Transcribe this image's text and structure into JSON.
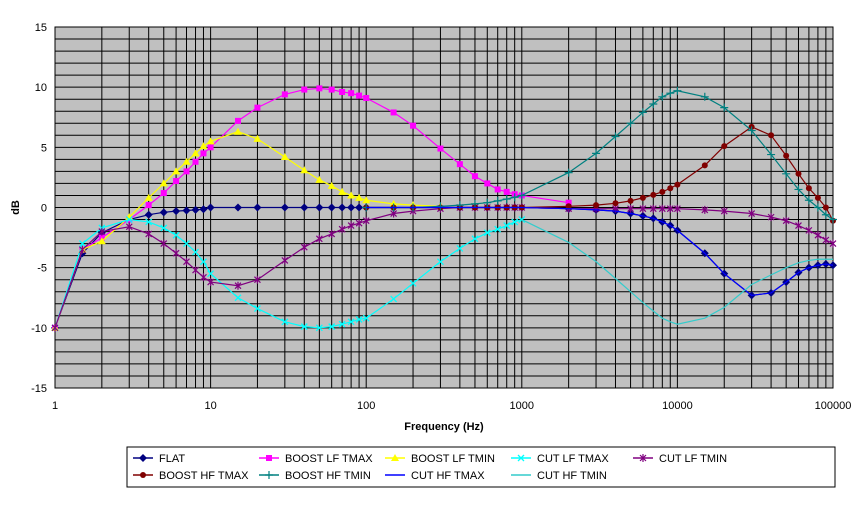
{
  "chart_data": {
    "type": "line",
    "xscale": "log",
    "xlabel": "Frequency (Hz)",
    "ylabel": "dB",
    "xlim": [
      1,
      100000
    ],
    "ylim": [
      -15,
      15
    ],
    "x_ticks": [
      "1",
      "10",
      "100",
      "1000",
      "10000",
      "100000"
    ],
    "y_ticks": [
      "15",
      "10",
      "5",
      "0",
      "-5",
      "-10",
      "-15"
    ],
    "grid": true,
    "plot_background": "#c0c0c0",
    "legend_position": "bottom",
    "series": [
      {
        "name": "FLAT",
        "color": "#000080",
        "marker": "diamond",
        "x": [
          1,
          1.5,
          2,
          3,
          4,
          5,
          6,
          7,
          8,
          9,
          10,
          15,
          20,
          30,
          40,
          50,
          60,
          70,
          80,
          90,
          100,
          150,
          200,
          300,
          400,
          500,
          600,
          700,
          800,
          900,
          1000,
          2000,
          3000,
          4000,
          5000,
          6000,
          7000,
          8000,
          9000,
          10000,
          15000,
          20000,
          30000,
          40000,
          50000,
          60000,
          70000,
          80000,
          90000,
          100000
        ],
        "y": [
          -10,
          -3.8,
          -2.1,
          -1,
          -0.6,
          -0.4,
          -0.3,
          -0.25,
          -0.2,
          -0.15,
          0,
          0,
          0,
          0,
          0,
          0,
          0,
          0,
          0,
          0,
          0,
          0,
          0,
          0,
          0,
          0,
          0,
          0,
          0,
          0,
          0,
          -0.1,
          -0.2,
          -0.3,
          -0.5,
          -0.7,
          -0.9,
          -1.2,
          -1.5,
          -1.9,
          -3.8,
          -5.5,
          -7.3,
          -7.1,
          -6.2,
          -5.4,
          -5,
          -4.8,
          -4.7,
          -4.8
        ]
      },
      {
        "name": "BOOST LF TMAX",
        "color": "#ff00ff",
        "marker": "square",
        "x": [
          1,
          1.5,
          2,
          3,
          4,
          5,
          6,
          7,
          8,
          9,
          10,
          15,
          20,
          30,
          40,
          50,
          60,
          70,
          80,
          90,
          100,
          150,
          200,
          300,
          400,
          500,
          600,
          700,
          800,
          900,
          1000,
          2000
        ],
        "y": [
          -10,
          -3.5,
          -2.5,
          -1,
          0.2,
          1.2,
          2.2,
          3,
          3.8,
          4.5,
          5,
          7.2,
          8.3,
          9.4,
          9.8,
          9.9,
          9.8,
          9.6,
          9.5,
          9.3,
          9.1,
          7.9,
          6.8,
          4.9,
          3.6,
          2.6,
          2,
          1.5,
          1.3,
          1.1,
          1,
          0.4
        ]
      },
      {
        "name": "BOOST LF TMIN",
        "color": "#ffff00",
        "marker": "triangle",
        "x": [
          1,
          1.5,
          2,
          3,
          4,
          5,
          6,
          7,
          8,
          9,
          10,
          15,
          20,
          30,
          40,
          50,
          60,
          70,
          80,
          90,
          100,
          150,
          200,
          300
        ],
        "y": [
          -10,
          -3.5,
          -2.8,
          -0.8,
          0.8,
          2,
          3,
          3.8,
          4.5,
          5.1,
          5.5,
          6.3,
          5.7,
          4.2,
          3.1,
          2.3,
          1.8,
          1.3,
          1,
          0.8,
          0.6,
          0.3,
          0.2,
          0.1
        ]
      },
      {
        "name": "CUT LF TMAX",
        "color": "#00ffff",
        "marker": "x",
        "x": [
          1,
          1.5,
          2,
          3,
          4,
          5,
          6,
          7,
          8,
          9,
          10,
          15,
          20,
          30,
          40,
          50,
          60,
          70,
          80,
          90,
          100,
          150,
          200,
          300,
          400,
          500,
          600,
          700,
          800,
          900,
          1000
        ],
        "y": [
          -10,
          -3,
          -1.7,
          -1,
          -1.2,
          -1.7,
          -2.3,
          -3,
          -3.7,
          -4.5,
          -5.5,
          -7.5,
          -8.4,
          -9.5,
          -9.9,
          -10,
          -9.9,
          -9.7,
          -9.5,
          -9.3,
          -9.2,
          -7.6,
          -6.3,
          -4.5,
          -3.4,
          -2.6,
          -2.1,
          -1.8,
          -1.5,
          -1.2,
          -1
        ]
      },
      {
        "name": "CUT LF TMIN",
        "color": "#800080",
        "marker": "star",
        "x": [
          1,
          1.5,
          2,
          3,
          4,
          5,
          6,
          7,
          8,
          9,
          10,
          15,
          20,
          30,
          40,
          50,
          60,
          70,
          80,
          90,
          100,
          150,
          200,
          300,
          400,
          500,
          600,
          700,
          800,
          900,
          1000,
          2000,
          3000,
          4000,
          5000,
          6000,
          7000,
          8000,
          9000,
          10000,
          15000,
          20000,
          30000,
          40000,
          50000,
          60000,
          70000,
          80000,
          90000,
          100000
        ],
        "y": [
          -10,
          -3.5,
          -2,
          -1.6,
          -2.2,
          -3,
          -3.8,
          -4.5,
          -5.2,
          -5.8,
          -6.2,
          -6.5,
          -6,
          -4.4,
          -3.3,
          -2.6,
          -2.2,
          -1.8,
          -1.5,
          -1.3,
          -1.1,
          -0.5,
          -0.3,
          -0.1,
          0,
          0,
          0,
          0,
          0,
          0,
          0,
          -0.1,
          -0.1,
          -0.1,
          -0.1,
          -0.1,
          -0.1,
          -0.1,
          -0.1,
          -0.1,
          -0.2,
          -0.3,
          -0.5,
          -0.8,
          -1.1,
          -1.5,
          -1.9,
          -2.3,
          -2.7,
          -3
        ]
      },
      {
        "name": "BOOST HF TMAX",
        "color": "#800000",
        "marker": "circle",
        "x": [
          100,
          150,
          200,
          300,
          400,
          500,
          600,
          700,
          800,
          900,
          1000,
          2000,
          3000,
          4000,
          5000,
          6000,
          7000,
          8000,
          9000,
          10000,
          15000,
          20000,
          30000,
          40000,
          50000,
          60000,
          70000,
          80000,
          90000,
          100000
        ],
        "y": [
          0,
          0,
          0,
          0,
          0,
          0,
          0,
          0,
          0,
          0,
          0,
          0.1,
          0.2,
          0.35,
          0.55,
          0.8,
          1.05,
          1.3,
          1.6,
          1.9,
          3.5,
          5.1,
          6.7,
          6,
          4.3,
          2.8,
          1.6,
          0.8,
          0,
          -1.1
        ]
      },
      {
        "name": "BOOST HF TMIN",
        "color": "#008080",
        "marker": "plus",
        "x": [
          100,
          150,
          200,
          300,
          400,
          500,
          600,
          700,
          800,
          900,
          1000,
          2000,
          3000,
          4000,
          5000,
          6000,
          7000,
          8000,
          9000,
          10000,
          15000,
          20000,
          30000,
          40000,
          50000,
          60000,
          70000,
          80000,
          90000,
          100000
        ],
        "y": [
          0,
          0,
          0,
          0.1,
          0.2,
          0.3,
          0.4,
          0.55,
          0.7,
          0.85,
          1,
          2.9,
          4.5,
          5.9,
          7,
          7.9,
          8.6,
          9.2,
          9.5,
          9.7,
          9.2,
          8.3,
          6.4,
          4.4,
          2.8,
          1.5,
          0.6,
          0,
          -0.6,
          -1
        ]
      },
      {
        "name": "CUT HF TMAX",
        "color": "#0000ff",
        "marker": "none",
        "x": [
          100,
          150,
          200,
          300,
          400,
          500,
          600,
          700,
          800,
          900,
          1000,
          2000,
          3000,
          4000,
          5000,
          6000,
          7000,
          8000,
          9000,
          10000,
          15000,
          20000,
          30000,
          40000,
          50000,
          60000,
          70000,
          80000,
          90000,
          100000
        ],
        "y": [
          0,
          0,
          0,
          0,
          0,
          0,
          0,
          0,
          0,
          0,
          0,
          -0.1,
          -0.2,
          -0.3,
          -0.5,
          -0.7,
          -0.9,
          -1.2,
          -1.5,
          -1.9,
          -3.8,
          -5.5,
          -7.3,
          -7.1,
          -6.2,
          -5.4,
          -5,
          -4.8,
          -4.7,
          -4.8
        ]
      },
      {
        "name": "CUT HF TMIN",
        "color": "#33cccc",
        "marker": "none",
        "x": [
          1000,
          2000,
          3000,
          4000,
          5000,
          6000,
          7000,
          8000,
          9000,
          10000,
          15000,
          20000,
          30000,
          40000,
          50000,
          60000,
          70000,
          80000,
          90000,
          100000
        ],
        "y": [
          -1,
          -2.9,
          -4.5,
          -5.9,
          -7,
          -7.9,
          -8.6,
          -9.2,
          -9.5,
          -9.7,
          -9.2,
          -8.3,
          -6.4,
          -5.6,
          -5,
          -4.6,
          -4.4,
          -4.3,
          -4.3,
          -4.3
        ]
      }
    ]
  }
}
